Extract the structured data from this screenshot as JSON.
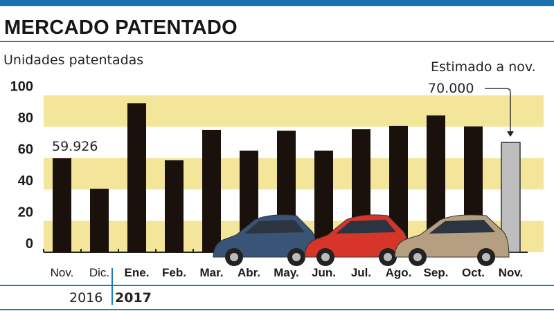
{
  "title": "MERCADO PATENTADO",
  "colors": {
    "accent": "#1872b4",
    "band": "#f3e59a",
    "bar": "#1a110c",
    "estimate": "#bdbdbd"
  },
  "chart_data": {
    "type": "bar",
    "title": "MERCADO PATENTADO",
    "ylabel": "Unidades patentadas",
    "ylim": [
      0,
      100
    ],
    "yticks": [
      "0",
      "20",
      "40",
      "60",
      "80",
      "100"
    ],
    "grid": "alternating horizontal bands",
    "categories": [
      "Nov.",
      "Dic.",
      "Ene.",
      "Feb.",
      "Mar.",
      "Abr.",
      "May.",
      "Jun.",
      "Jul.",
      "Ago.",
      "Sep.",
      "Oct.",
      "Nov."
    ],
    "years": [
      {
        "label": "2016",
        "bold": false
      },
      {
        "label": "2017",
        "bold": true
      }
    ],
    "values": [
      59.926,
      40.5,
      95,
      58.6,
      78,
      64.8,
      77.5,
      64.8,
      78.4,
      80.6,
      87.2,
      80.2,
      70
    ],
    "estimated": [
      false,
      false,
      false,
      false,
      false,
      false,
      false,
      false,
      false,
      false,
      false,
      false,
      true
    ],
    "annotations": {
      "first_value": "59.926",
      "estimate_label": "Estimado a nov.",
      "estimate_value": "70.000"
    }
  }
}
